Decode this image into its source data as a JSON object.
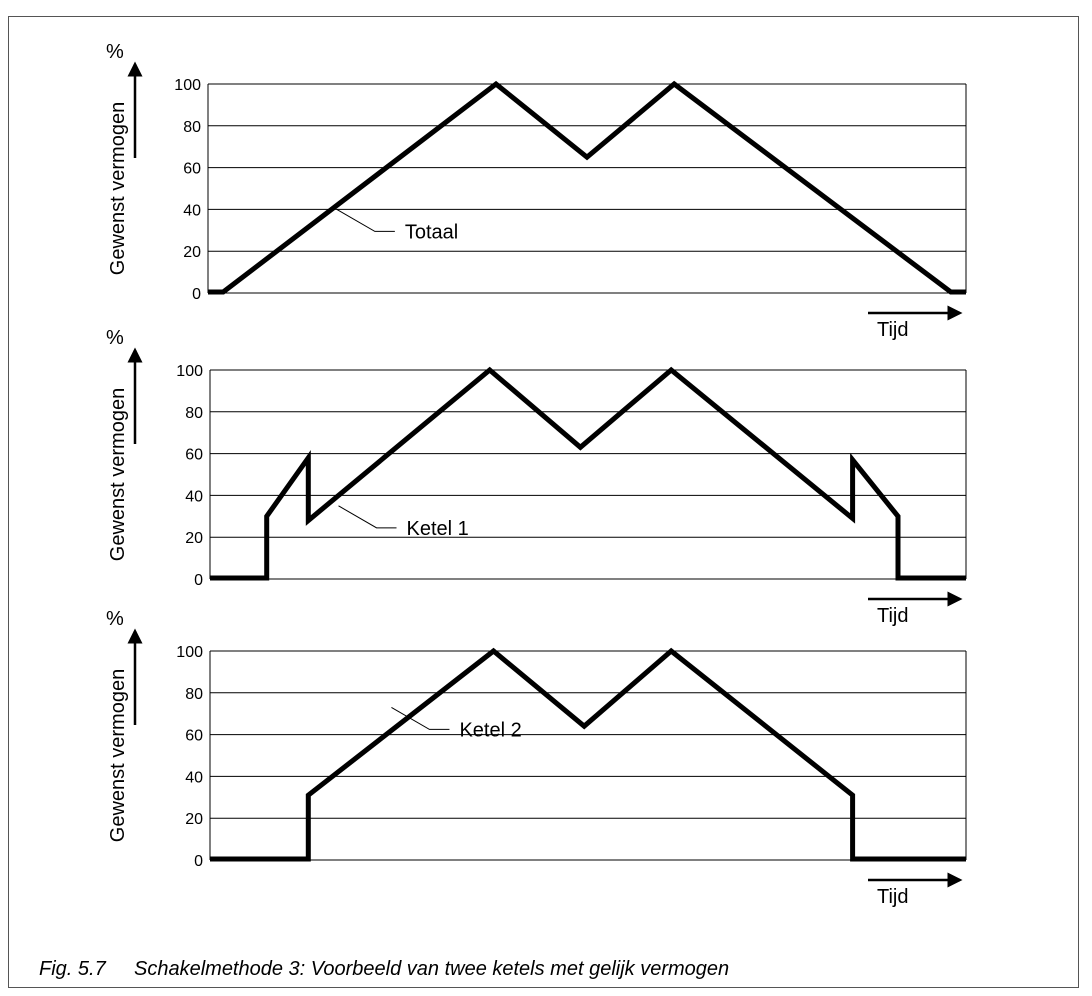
{
  "caption": {
    "number": "Fig. 5.7",
    "text": "Schakelmethode 3: Voorbeeld van twee ketels met gelijk vermogen"
  },
  "chart_data": [
    {
      "type": "line",
      "unit_label": "%",
      "ylabel": "Gewenst vermogen",
      "xlabel": "Tijd",
      "ylim": [
        0,
        100
      ],
      "yticks": [
        "0",
        "20",
        "40",
        "60",
        "80",
        "100"
      ],
      "grid": true,
      "series": [
        {
          "name": "Totaal",
          "points": [
            [
              0,
              0.5
            ],
            [
              2,
              0.5
            ],
            [
              38,
              100
            ],
            [
              50,
              65
            ],
            [
              61.5,
              100
            ],
            [
              98,
              0.5
            ],
            [
              100,
              0.5
            ]
          ]
        }
      ],
      "annotation": {
        "text": "Totaal",
        "anchor": [
          17,
          40
        ]
      }
    },
    {
      "type": "line",
      "unit_label": "%",
      "ylabel": "Gewenst vermogen",
      "xlabel": "Tijd",
      "ylim": [
        0,
        100
      ],
      "yticks": [
        "0",
        "20",
        "40",
        "60",
        "80",
        "100"
      ],
      "grid": true,
      "series": [
        {
          "name": "Ketel 1",
          "points": [
            [
              0,
              0.5
            ],
            [
              7.5,
              0.5
            ],
            [
              7.5,
              30
            ],
            [
              13,
              58
            ],
            [
              13,
              28
            ],
            [
              37,
              100
            ],
            [
              49,
              63
            ],
            [
              61,
              100
            ],
            [
              85,
              29
            ],
            [
              85,
              57
            ],
            [
              91,
              30
            ],
            [
              91,
              0.5
            ],
            [
              100,
              0.5
            ]
          ]
        }
      ],
      "annotation": {
        "text": "Ketel 1",
        "anchor": [
          17,
          35
        ]
      }
    },
    {
      "type": "line",
      "unit_label": "%",
      "ylabel": "Gewenst vermogen",
      "xlabel": "Tijd",
      "ylim": [
        0,
        100
      ],
      "yticks": [
        "0",
        "20",
        "40",
        "60",
        "80",
        "100"
      ],
      "grid": true,
      "series": [
        {
          "name": "Ketel 2",
          "points": [
            [
              0,
              0.5
            ],
            [
              13,
              0.5
            ],
            [
              13,
              31
            ],
            [
              37.5,
              100
            ],
            [
              49.5,
              64
            ],
            [
              61,
              100
            ],
            [
              85,
              31
            ],
            [
              85,
              0.5
            ],
            [
              100,
              0.5
            ]
          ]
        }
      ],
      "annotation": {
        "text": "Ketel 2",
        "anchor": [
          24,
          73
        ]
      }
    }
  ]
}
